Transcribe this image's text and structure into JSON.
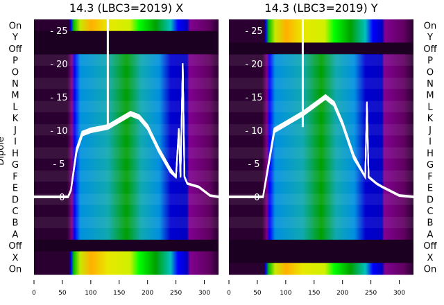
{
  "chart_data": [
    {
      "type": "heatmap",
      "title": "14.3 (LBC3=2019) X",
      "ylabel": "Dipole",
      "row_labels": [
        "On",
        "Y",
        "Off",
        "P",
        "O",
        "N",
        "M",
        "L",
        "K",
        "J",
        "I",
        "H",
        "G",
        "F",
        "E",
        "D",
        "C",
        "B",
        "A",
        "Off",
        "X",
        "On"
      ],
      "bright_rows": [
        0,
        20,
        21
      ],
      "dark_rows": [
        1,
        2,
        19
      ],
      "xlim": [
        0,
        325
      ],
      "xticks": [
        0,
        50,
        100,
        150,
        200,
        250,
        300
      ],
      "overlay_ylim": [
        0,
        25
      ],
      "overlay_yticks": [
        0,
        5,
        10,
        15,
        20,
        25
      ],
      "overlay_line": {
        "x": [
          0,
          60,
          65,
          75,
          85,
          100,
          130,
          150,
          170,
          185,
          200,
          220,
          240,
          250,
          255,
          258,
          262,
          265,
          270,
          290,
          310,
          325
        ],
        "y": [
          0,
          0,
          1,
          7,
          9.5,
          10,
          10.5,
          11.5,
          12.5,
          12,
          10.5,
          7,
          4,
          3,
          10,
          3,
          20,
          3,
          2,
          1.5,
          0.2,
          0
        ]
      },
      "spike_x": 130
    },
    {
      "type": "heatmap",
      "title": "14.3 (LBC3=2019) Y",
      "row_labels": [
        "On",
        "Y",
        "Off",
        "P",
        "O",
        "N",
        "M",
        "L",
        "K",
        "J",
        "I",
        "H",
        "G",
        "F",
        "E",
        "D",
        "C",
        "B",
        "A",
        "Off",
        "X",
        "On"
      ],
      "bright_rows": [
        0,
        1,
        21
      ],
      "dark_rows": [
        2,
        19,
        20
      ],
      "xlim": [
        0,
        325
      ],
      "xticks": [
        0,
        50,
        100,
        150,
        200,
        250,
        300
      ],
      "overlay_ylim": [
        0,
        25
      ],
      "overlay_yticks": [
        0,
        5,
        10,
        15,
        20,
        25
      ],
      "overlay_line": {
        "x": [
          0,
          60,
          70,
          80,
          100,
          130,
          170,
          185,
          200,
          220,
          240,
          243,
          246,
          260,
          270,
          300,
          325
        ],
        "y": [
          0,
          0,
          5,
          10,
          11,
          12.5,
          15,
          14,
          11,
          6,
          3,
          14,
          3,
          2,
          1.5,
          0.2,
          0
        ]
      },
      "spike_x": 130
    }
  ]
}
